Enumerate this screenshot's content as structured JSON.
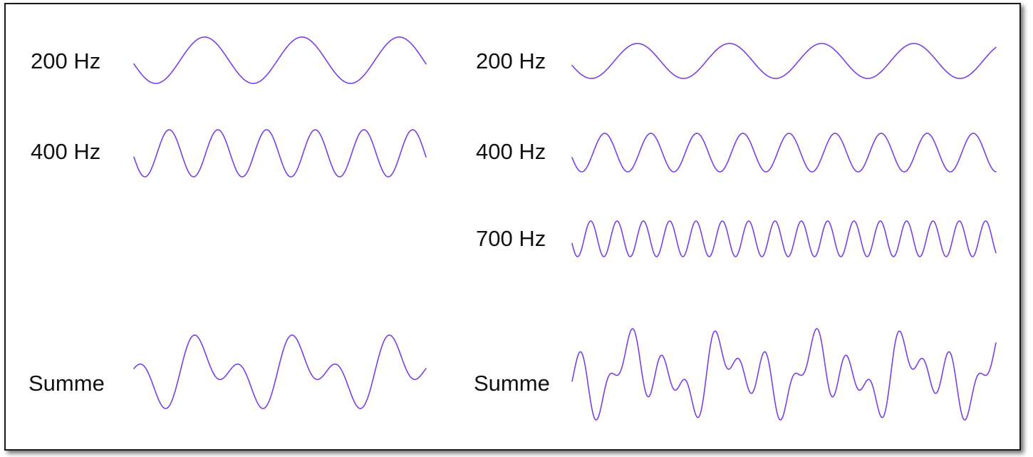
{
  "wave_color": "#7b3fe4",
  "left": {
    "label_200": "200 Hz",
    "label_400": "400 Hz",
    "label_sum": "Summe"
  },
  "right": {
    "label_200": "200 Hz",
    "label_400": "400 Hz",
    "label_700": "700 Hz",
    "label_sum": "Summe"
  },
  "waves": [
    {
      "id": "left-200",
      "components": [
        {
          "freq": 200,
          "amp": 1
        }
      ],
      "cycles": 3
    },
    {
      "id": "left-400",
      "components": [
        {
          "freq": 400,
          "amp": 1
        }
      ],
      "cycles": 6
    },
    {
      "id": "left-sum",
      "components": [
        {
          "freq": 200,
          "amp": 1
        },
        {
          "freq": 400,
          "amp": 1
        }
      ],
      "cycles": 3
    },
    {
      "id": "right-200",
      "components": [
        {
          "freq": 200,
          "amp": 1
        }
      ],
      "cycles": 4.6
    },
    {
      "id": "right-400",
      "components": [
        {
          "freq": 400,
          "amp": 1
        }
      ],
      "cycles": 9.2
    },
    {
      "id": "right-700",
      "components": [
        {
          "freq": 700,
          "amp": 1
        }
      ],
      "cycles": 16.1
    },
    {
      "id": "right-sum",
      "components": [
        {
          "freq": 200,
          "amp": 1
        },
        {
          "freq": 400,
          "amp": 1
        },
        {
          "freq": 700,
          "amp": 1
        }
      ],
      "cycles": 4.6
    }
  ]
}
